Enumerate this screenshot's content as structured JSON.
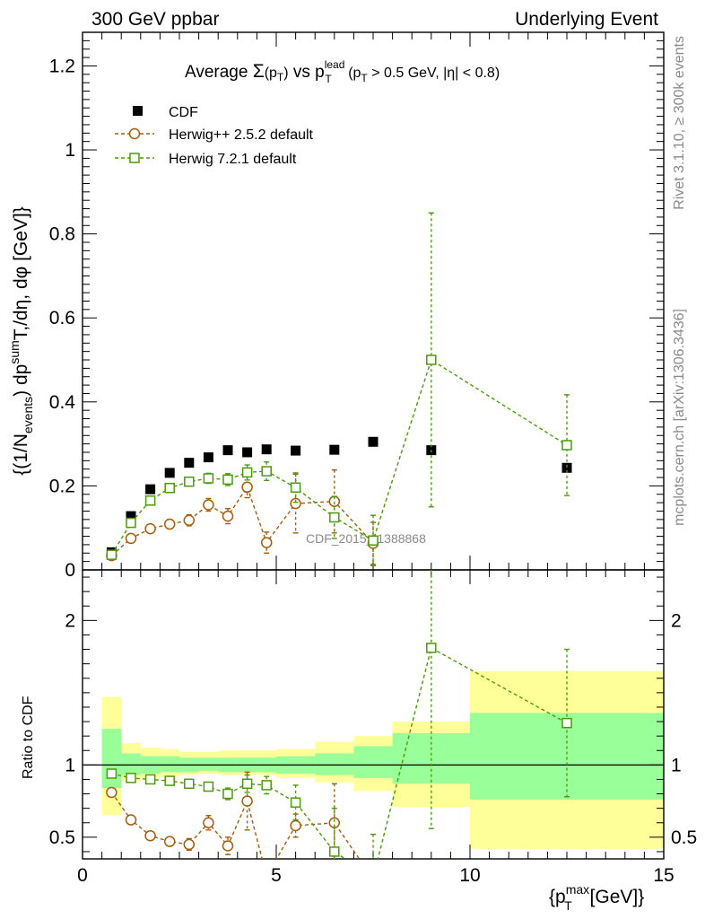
{
  "header": {
    "left": "300 GeV ppbar",
    "right": "Underlying Event"
  },
  "side_labels": {
    "rivet": "Rivet 3.1.10, ≥ 300k events",
    "mcplots": "mcplots.cern.ch [arXiv:1306.3436]"
  },
  "title": {
    "prefix": "Average ",
    "sigma": "Σ",
    "pt_open": "(p",
    "pt_sub": "T",
    "pt_close": ")",
    "vs": " vs p",
    "lead_sup": "lead",
    "lead_sub": "T",
    "cut_open": " (p",
    "cut_sub": "T",
    "cut_rest": " > 0.5 GeV, |η| < 0.8)"
  },
  "ylabel_main": "{(1/N_events) dp^sum_T/dη, dφ [GeV]}",
  "ylabel_main_parts": {
    "a": "{(1/N",
    "a_sub": "events",
    "b": ") dp",
    "b_sup": "sum",
    "c": "T,/dη, dφ [GeV]}"
  },
  "ylabel_ratio": "Ratio to CDF",
  "xlabel": {
    "a": "{p",
    "sup": "max",
    "sub": "T",
    "b": " [GeV]}"
  },
  "watermark": "CDF_2015_I1388868",
  "legend": [
    {
      "label": "CDF",
      "color": "#000000",
      "marker": "filled-square"
    },
    {
      "label": "Herwig++ 2.5.2 default",
      "color": "#a65c0a",
      "marker": "open-circle"
    },
    {
      "label": "Herwig 7.2.1 default",
      "color": "#4a9c0a",
      "marker": "open-square"
    }
  ],
  "chart_data": {
    "type": "scatter",
    "xlim": [
      0,
      15
    ],
    "main": {
      "ylim": [
        0,
        1.28
      ],
      "yticks": [
        0,
        0.2,
        0.4,
        0.6,
        0.8,
        1,
        1.2
      ],
      "ytick_labels": [
        "0",
        "0.2",
        "0.4",
        "0.6",
        "0.8",
        "1",
        "1.2"
      ]
    },
    "ratio": {
      "ylim": [
        0.35,
        2.35
      ],
      "yticks": [
        0.5,
        1,
        2
      ],
      "ytick_labels": [
        "0.5",
        "1",
        "2"
      ],
      "bands": [
        {
          "x0": 0.5,
          "x1": 1.0,
          "g": [
            0.84,
            1.25
          ],
          "y": [
            0.65,
            1.47
          ]
        },
        {
          "x0": 1.0,
          "x1": 1.5,
          "g": [
            0.93,
            1.08
          ],
          "y": [
            0.89,
            1.15
          ]
        },
        {
          "x0": 1.5,
          "x1": 2.0,
          "g": [
            0.94,
            1.06
          ],
          "y": [
            0.91,
            1.12
          ]
        },
        {
          "x0": 2.0,
          "x1": 2.5,
          "g": [
            0.95,
            1.06
          ],
          "y": [
            0.92,
            1.11
          ]
        },
        {
          "x0": 2.5,
          "x1": 3.0,
          "g": [
            0.95,
            1.05
          ],
          "y": [
            0.93,
            1.09
          ]
        },
        {
          "x0": 3.0,
          "x1": 3.5,
          "g": [
            0.96,
            1.05
          ],
          "y": [
            0.94,
            1.09
          ]
        },
        {
          "x0": 3.5,
          "x1": 4.0,
          "g": [
            0.95,
            1.05
          ],
          "y": [
            0.93,
            1.1
          ]
        },
        {
          "x0": 4.0,
          "x1": 4.5,
          "g": [
            0.95,
            1.05
          ],
          "y": [
            0.93,
            1.1
          ]
        },
        {
          "x0": 4.5,
          "x1": 5.0,
          "g": [
            0.95,
            1.05
          ],
          "y": [
            0.93,
            1.1
          ]
        },
        {
          "x0": 5.0,
          "x1": 6.0,
          "g": [
            0.94,
            1.06
          ],
          "y": [
            0.91,
            1.11
          ]
        },
        {
          "x0": 6.0,
          "x1": 7.0,
          "g": [
            0.93,
            1.08
          ],
          "y": [
            0.88,
            1.16
          ]
        },
        {
          "x0": 7.0,
          "x1": 8.0,
          "g": [
            0.91,
            1.13
          ],
          "y": [
            0.82,
            1.2
          ]
        },
        {
          "x0": 8.0,
          "x1": 10.0,
          "g": [
            0.87,
            1.22
          ],
          "y": [
            0.71,
            1.3
          ]
        },
        {
          "x0": 10.0,
          "x1": 15.0,
          "g": [
            0.76,
            1.36
          ],
          "y": [
            0.42,
            1.65
          ]
        }
      ]
    },
    "series": [
      {
        "name": "CDF",
        "x": [
          0.75,
          1.25,
          1.75,
          2.25,
          2.75,
          3.25,
          3.75,
          4.25,
          4.75,
          5.5,
          6.5,
          7.5,
          9.0,
          12.5
        ],
        "y": [
          0.042,
          0.128,
          0.192,
          0.231,
          0.255,
          0.268,
          0.285,
          0.28,
          0.287,
          0.284,
          0.286,
          0.305,
          0.285,
          0.243
        ],
        "err": [
          0.003,
          0.005,
          0.006,
          0.007,
          0.007,
          0.008,
          0.008,
          0.008,
          0.008,
          0.009,
          0.01,
          0.012,
          0.015,
          0.02
        ]
      },
      {
        "name": "Herwig++ 2.5.2 default",
        "x": [
          0.75,
          1.25,
          1.75,
          2.25,
          2.75,
          3.25,
          3.75,
          4.25,
          4.75,
          5.5,
          6.5,
          7.5
        ],
        "y": [
          0.034,
          0.075,
          0.098,
          0.109,
          0.118,
          0.155,
          0.128,
          0.197,
          0.065,
          0.158,
          0.163,
          0.063
        ],
        "err": [
          0.004,
          0.007,
          0.009,
          0.011,
          0.013,
          0.015,
          0.018,
          0.025,
          0.025,
          0.07,
          0.075,
          0.05
        ],
        "ratio": [
          0.81,
          0.62,
          0.51,
          0.47,
          0.45,
          0.6,
          0.44,
          0.75,
          0.23,
          0.58,
          0.6,
          0.21
        ],
        "ratio_err": [
          0.02,
          0.02,
          0.02,
          0.02,
          0.04,
          0.05,
          0.06,
          0.2,
          0.1,
          0.08,
          0.27,
          0.1
        ]
      },
      {
        "name": "Herwig 7.2.1 default",
        "x": [
          0.75,
          1.25,
          1.75,
          2.25,
          2.75,
          3.25,
          3.75,
          4.25,
          4.75,
          5.5,
          6.5,
          7.5,
          9.0,
          12.5
        ],
        "y": [
          0.036,
          0.112,
          0.165,
          0.195,
          0.21,
          0.218,
          0.215,
          0.232,
          0.235,
          0.196,
          0.125,
          0.07,
          0.5,
          0.297
        ],
        "err": [
          0.003,
          0.006,
          0.008,
          0.009,
          0.01,
          0.012,
          0.014,
          0.018,
          0.022,
          0.035,
          0.05,
          0.06,
          0.35,
          0.12
        ],
        "ratio": [
          0.94,
          0.91,
          0.9,
          0.89,
          0.87,
          0.85,
          0.8,
          0.87,
          0.86,
          0.74,
          0.4,
          0.22,
          1.81,
          1.29
        ],
        "ratio_err": [
          0.02,
          0.02,
          0.02,
          0.02,
          0.02,
          0.03,
          0.04,
          0.06,
          0.06,
          0.12,
          0.3,
          0.3,
          1.25,
          0.51
        ]
      }
    ]
  }
}
